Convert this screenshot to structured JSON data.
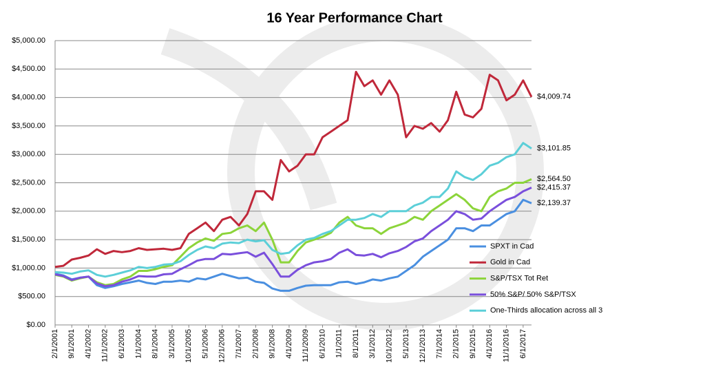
{
  "chart_data": {
    "type": "line",
    "title": "16 Year Performance Chart",
    "categories": [
      "2/1/2001",
      null,
      "9/1/2001",
      null,
      "4/1/2002",
      null,
      "11/1/2002",
      null,
      "6/1/2003",
      null,
      "1/1/2004",
      null,
      "8/1/2004",
      null,
      "3/1/2005",
      null,
      "10/1/2005",
      null,
      "5/1/2006",
      null,
      "12/1/2006",
      null,
      "7/1/2007",
      null,
      "2/1/2008",
      null,
      "9/1/2008",
      null,
      "4/1/2009",
      null,
      "11/1/2009",
      null,
      "6/1/2010",
      null,
      "1/1/2011",
      null,
      "8/1/2011",
      null,
      "3/1/2012",
      null,
      "10/1/2012",
      null,
      "5/1/2013",
      null,
      "12/1/2013",
      null,
      "7/1/2014",
      null,
      "2/1/2015",
      null,
      "9/1/2015",
      null,
      "4/1/2016",
      null,
      "11/1/2016",
      null,
      "6/1/2017",
      null
    ],
    "series": [
      {
        "name": "SPXT in Cad",
        "color": "#4a8fe0",
        "values": [
          900,
          870,
          800,
          830,
          850,
          700,
          650,
          680,
          720,
          750,
          780,
          740,
          720,
          760,
          760,
          780,
          760,
          820,
          800,
          850,
          900,
          860,
          820,
          830,
          760,
          740,
          640,
          600,
          600,
          650,
          690,
          700,
          700,
          700,
          750,
          760,
          720,
          750,
          800,
          780,
          820,
          850,
          950,
          1050,
          1200,
          1300,
          1400,
          1500,
          1700,
          1700,
          1650,
          1750,
          1750,
          1850,
          1950,
          2000,
          2200,
          2139.37
        ],
        "value_labels": [
          null,
          null,
          null,
          null,
          null,
          null,
          null,
          null,
          null,
          null,
          null,
          null,
          null,
          null,
          null,
          null,
          null,
          null,
          null,
          null,
          null,
          null,
          null,
          null,
          null,
          null,
          null,
          null,
          null,
          null,
          null,
          null,
          null,
          null,
          null,
          null,
          null,
          null,
          null,
          null,
          null,
          null,
          null,
          null,
          null,
          null,
          null,
          null,
          null,
          null,
          null,
          null,
          null,
          null,
          null,
          null,
          null,
          "$2,139.37"
        ]
      },
      {
        "name": "Gold in Cad",
        "color": "#c0283a",
        "values": [
          1020,
          1040,
          1150,
          1180,
          1220,
          1330,
          1250,
          1300,
          1280,
          1300,
          1350,
          1320,
          1330,
          1340,
          1320,
          1350,
          1600,
          1700,
          1800,
          1650,
          1850,
          1900,
          1750,
          1950,
          2350,
          2350,
          2200,
          2900,
          2700,
          2800,
          3000,
          3000,
          3300,
          3400,
          3500,
          3600,
          4450,
          4200,
          4300,
          4050,
          4300,
          4050,
          3300,
          3500,
          3450,
          3550,
          3400,
          3600,
          4100,
          3700,
          3650,
          3800,
          4400,
          4300,
          3950,
          4050,
          4300,
          4009.74
        ],
        "value_labels": [
          null,
          null,
          null,
          null,
          null,
          null,
          null,
          null,
          null,
          null,
          null,
          null,
          null,
          null,
          null,
          null,
          null,
          null,
          null,
          null,
          null,
          null,
          null,
          null,
          null,
          null,
          null,
          null,
          null,
          null,
          null,
          null,
          null,
          null,
          null,
          null,
          null,
          null,
          null,
          null,
          null,
          null,
          null,
          null,
          null,
          null,
          null,
          null,
          null,
          null,
          null,
          null,
          null,
          null,
          null,
          null,
          null,
          "$4,009.74"
        ]
      },
      {
        "name": "S&P/TSX Tot Ret",
        "color": "#8cd43a",
        "values": [
          880,
          850,
          780,
          820,
          850,
          750,
          700,
          720,
          800,
          850,
          950,
          950,
          980,
          1020,
          1050,
          1200,
          1350,
          1450,
          1520,
          1480,
          1600,
          1620,
          1700,
          1750,
          1650,
          1800,
          1500,
          1100,
          1100,
          1300,
          1450,
          1500,
          1550,
          1620,
          1800,
          1900,
          1750,
          1700,
          1700,
          1600,
          1700,
          1750,
          1800,
          1900,
          1850,
          2000,
          2100,
          2200,
          2300,
          2200,
          2050,
          2000,
          2250,
          2350,
          2400,
          2500,
          2500,
          2564.5
        ],
        "value_labels": [
          null,
          null,
          null,
          null,
          null,
          null,
          null,
          null,
          null,
          null,
          null,
          null,
          null,
          null,
          null,
          null,
          null,
          null,
          null,
          null,
          null,
          null,
          null,
          null,
          null,
          null,
          null,
          null,
          null,
          null,
          null,
          null,
          null,
          null,
          null,
          null,
          null,
          null,
          null,
          null,
          null,
          null,
          null,
          null,
          null,
          null,
          null,
          null,
          null,
          null,
          null,
          null,
          null,
          null,
          null,
          null,
          null,
          "$2,564.50"
        ]
      },
      {
        "name": "50% S&P/ 50% S&P/TSX",
        "color": "#7a4fdc",
        "values": [
          890,
          860,
          790,
          830,
          850,
          730,
          680,
          700,
          760,
          800,
          860,
          850,
          850,
          890,
          900,
          980,
          1050,
          1130,
          1160,
          1160,
          1250,
          1240,
          1260,
          1280,
          1200,
          1270,
          1070,
          850,
          850,
          970,
          1050,
          1100,
          1120,
          1160,
          1270,
          1330,
          1230,
          1220,
          1250,
          1190,
          1260,
          1300,
          1370,
          1470,
          1520,
          1650,
          1750,
          1850,
          2000,
          1950,
          1850,
          1870,
          2000,
          2100,
          2200,
          2250,
          2350,
          2415.37
        ],
        "value_labels": [
          null,
          null,
          null,
          null,
          null,
          null,
          null,
          null,
          null,
          null,
          null,
          null,
          null,
          null,
          null,
          null,
          null,
          null,
          null,
          null,
          null,
          null,
          null,
          null,
          null,
          null,
          null,
          null,
          null,
          null,
          null,
          null,
          null,
          null,
          null,
          null,
          null,
          null,
          null,
          null,
          null,
          null,
          null,
          null,
          null,
          null,
          null,
          null,
          null,
          null,
          null,
          null,
          null,
          null,
          null,
          null,
          null,
          "$2,415.37"
        ]
      },
      {
        "name": "One-Thirds allocation across all 3",
        "color": "#5ccfd8",
        "values": [
          930,
          920,
          900,
          940,
          960,
          880,
          850,
          880,
          920,
          960,
          1020,
          1000,
          1020,
          1060,
          1070,
          1120,
          1230,
          1320,
          1380,
          1350,
          1430,
          1450,
          1440,
          1500,
          1470,
          1490,
          1320,
          1250,
          1270,
          1400,
          1500,
          1530,
          1600,
          1650,
          1750,
          1850,
          1850,
          1880,
          1950,
          1900,
          2000,
          2000,
          2000,
          2100,
          2150,
          2250,
          2250,
          2400,
          2700,
          2600,
          2550,
          2650,
          2800,
          2850,
          2950,
          3000,
          3200,
          3101.85
        ],
        "value_labels": [
          null,
          null,
          null,
          null,
          null,
          null,
          null,
          null,
          null,
          null,
          null,
          null,
          null,
          null,
          null,
          null,
          null,
          null,
          null,
          null,
          null,
          null,
          null,
          null,
          null,
          null,
          null,
          null,
          null,
          null,
          null,
          null,
          null,
          null,
          null,
          null,
          null,
          null,
          null,
          null,
          null,
          null,
          null,
          null,
          null,
          null,
          null,
          null,
          null,
          null,
          null,
          null,
          null,
          null,
          null,
          null,
          null,
          "$3,101.85"
        ]
      }
    ],
    "ylim": [
      0,
      5000
    ],
    "yticks": [
      {
        "value": 0,
        "label": "$0.00"
      },
      {
        "value": 500,
        "label": "$500.00"
      },
      {
        "value": 1000,
        "label": "$1,000.00"
      },
      {
        "value": 1500,
        "label": "$1,500.00"
      },
      {
        "value": 2000,
        "label": "$2,000.00"
      },
      {
        "value": 2500,
        "label": "$2,500.00"
      },
      {
        "value": 3000,
        "label": "$3,000.00"
      },
      {
        "value": 3500,
        "label": "$3,500.00"
      },
      {
        "value": 4000,
        "label": "$4,000.00"
      },
      {
        "value": 4500,
        "label": "$4,500.00"
      },
      {
        "value": 5000,
        "label": "$5,000.00"
      }
    ],
    "grid": true,
    "legend": "right"
  }
}
